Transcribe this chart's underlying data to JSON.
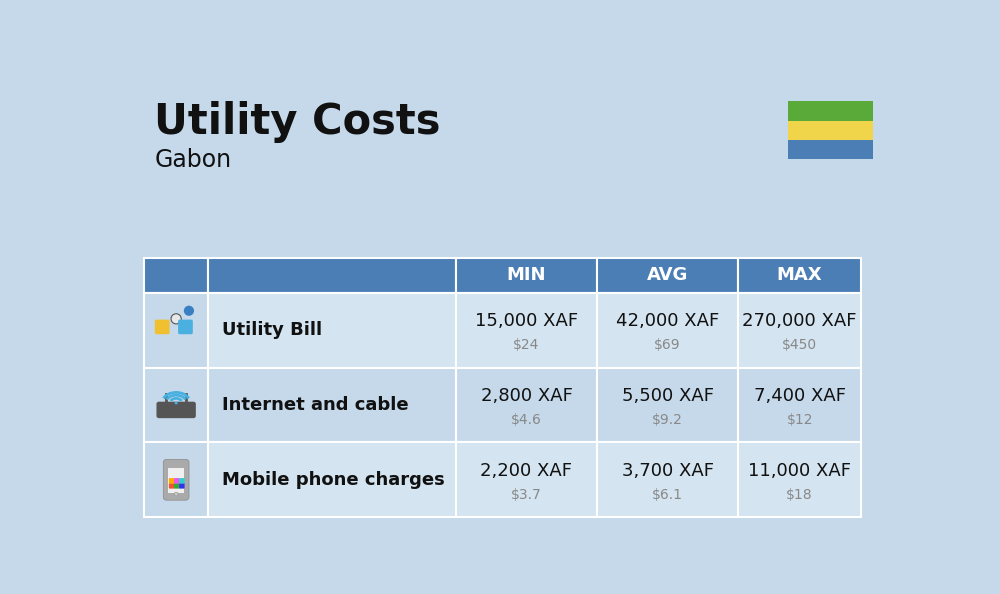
{
  "title": "Utility Costs",
  "subtitle": "Gabon",
  "background_color": "#c5d9ea",
  "header_bg_color": "#4a7eb5",
  "header_text_color": "#ffffff",
  "row_bg_light": "#d4e4f0",
  "row_bg_dark": "#c5d9ea",
  "icon_col_bg": "#c5d9ea",
  "label_col_bg": "#d4e4f0",
  "columns": [
    "MIN",
    "AVG",
    "MAX"
  ],
  "rows": [
    {
      "label": "Utility Bill",
      "values_xaf": [
        "15,000 XAF",
        "42,000 XAF",
        "270,000 XAF"
      ],
      "values_usd": [
        "$24",
        "$69",
        "$450"
      ]
    },
    {
      "label": "Internet and cable",
      "values_xaf": [
        "2,800 XAF",
        "5,500 XAF",
        "7,400 XAF"
      ],
      "values_usd": [
        "$4.6",
        "$9.2",
        "$12"
      ]
    },
    {
      "label": "Mobile phone charges",
      "values_xaf": [
        "2,200 XAF",
        "3,700 XAF",
        "11,000 XAF"
      ],
      "values_usd": [
        "$3.7",
        "$6.1",
        "$18"
      ]
    }
  ],
  "flag_colors": [
    "#5aaa3a",
    "#f0d44a",
    "#4a7eb5"
  ],
  "text_color": "#111111",
  "usd_color": "#888888",
  "title_fontsize": 30,
  "subtitle_fontsize": 17,
  "header_fontsize": 13,
  "label_fontsize": 13,
  "value_fontsize": 13,
  "usd_fontsize": 10
}
